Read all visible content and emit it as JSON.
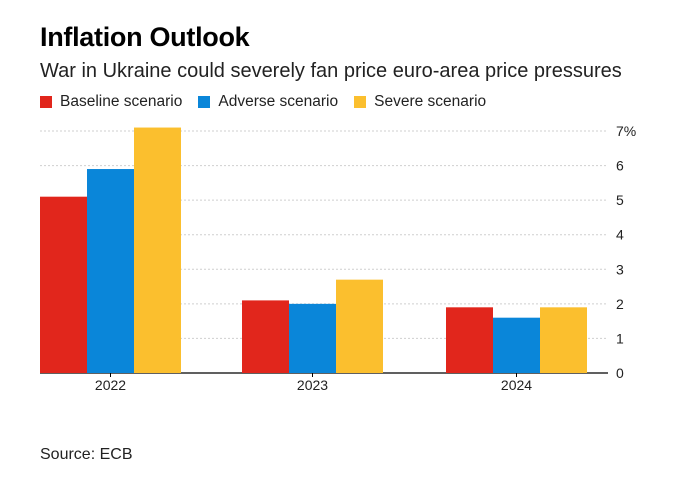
{
  "title": "Inflation Outlook",
  "subtitle": "War in Ukraine could severely fan price euro-area price pressures",
  "source": "Source: ECB",
  "chart_data": {
    "type": "bar",
    "categories": [
      "2022",
      "2023",
      "2024"
    ],
    "series": [
      {
        "name": "Baseline scenario",
        "color": "#e1261c",
        "values": [
          5.1,
          2.1,
          1.9
        ]
      },
      {
        "name": "Adverse scenario",
        "color": "#0a86d9",
        "values": [
          5.9,
          2.0,
          1.6
        ]
      },
      {
        "name": "Severe scenario",
        "color": "#fbbf2e",
        "values": [
          7.1,
          2.7,
          1.9
        ]
      }
    ],
    "ylim": [
      0,
      7
    ],
    "yticks": [
      0,
      1,
      2,
      3,
      4,
      5,
      6,
      7
    ],
    "ytick_labels": [
      "0",
      "1",
      "2",
      "3",
      "4",
      "5",
      "6",
      "7%"
    ],
    "grid": true,
    "y_axis_position": "right",
    "legend_position": "top-left"
  }
}
